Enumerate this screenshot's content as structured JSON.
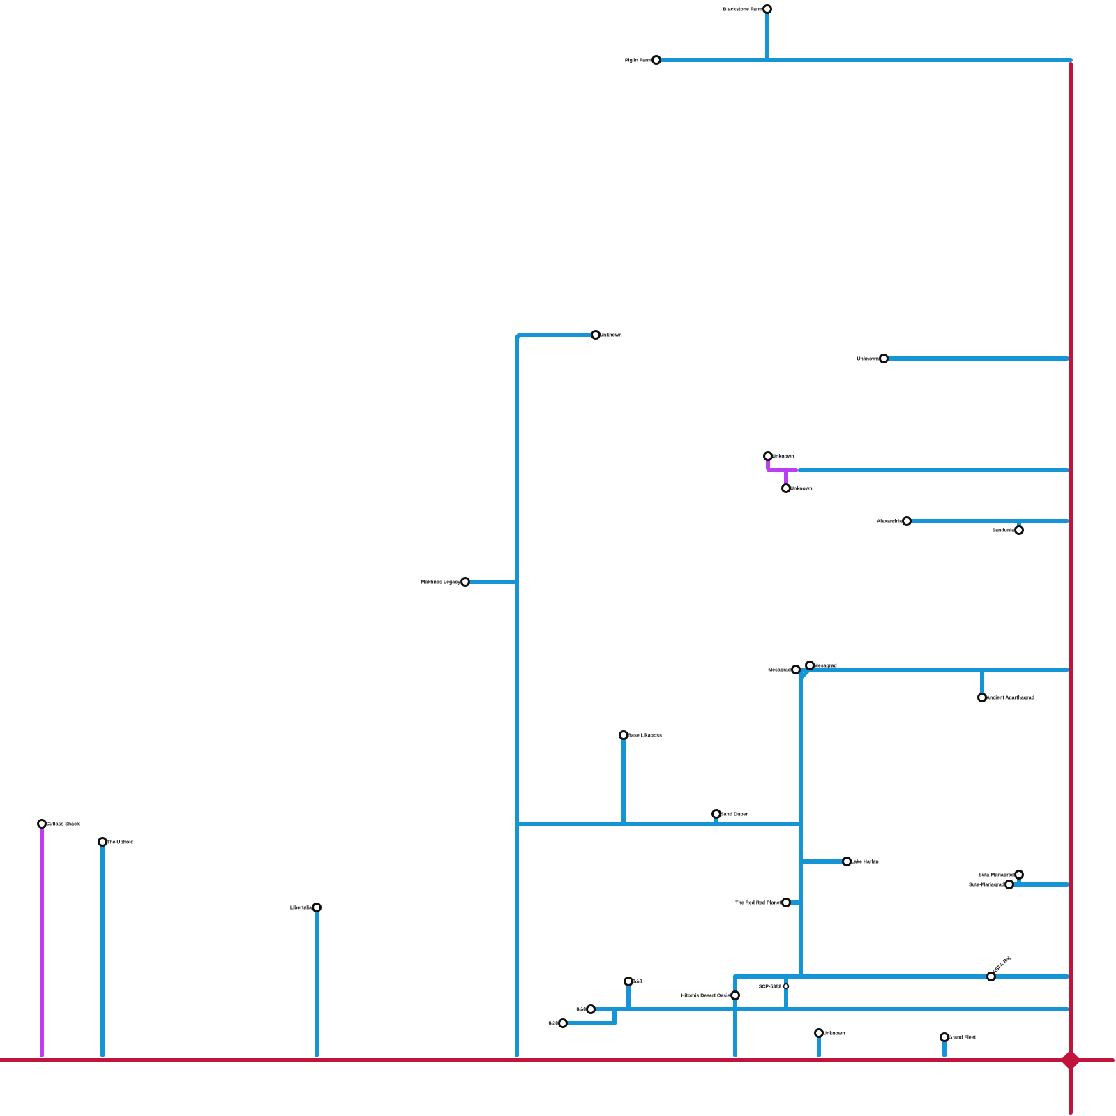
{
  "colors": {
    "axis": "#c0143c",
    "branch": "#1594d6",
    "purple": "#bb3ef0",
    "station_ring": "#111111"
  },
  "stations": [
    {
      "id": "blackstone",
      "label": "Blackstone Farm"
    },
    {
      "id": "piglin",
      "label": "Piglin Farm"
    },
    {
      "id": "unk-top",
      "label": "Unknown"
    },
    {
      "id": "unk-right",
      "label": "Unknown"
    },
    {
      "id": "unk-p1",
      "label": "Unknown"
    },
    {
      "id": "unk-p2",
      "label": "Unknown"
    },
    {
      "id": "alexandria",
      "label": "Alexandria"
    },
    {
      "id": "sandunia",
      "label": "Sandunia"
    },
    {
      "id": "makhnos",
      "label": "Makhnos Legacy"
    },
    {
      "id": "mesagrad1",
      "label": "Mesagrad"
    },
    {
      "id": "mesagrad2",
      "label": "Mesagrad"
    },
    {
      "id": "agarthagrad",
      "label": "Ancient Agarthagrad"
    },
    {
      "id": "likaboss",
      "label": "Base Likaboss"
    },
    {
      "id": "sandduper",
      "label": "Sand Duper"
    },
    {
      "id": "cutlass",
      "label": "Cutlass Shack"
    },
    {
      "id": "uphold",
      "label": "The Uphold"
    },
    {
      "id": "libertalia",
      "label": "Libertalia"
    },
    {
      "id": "harlan",
      "label": "Lake Harlan"
    },
    {
      "id": "suta1",
      "label": "Suta-Mariagrad"
    },
    {
      "id": "suta2",
      "label": "Suta-Mariagrad"
    },
    {
      "id": "redplanet",
      "label": "The Red Red Planet"
    },
    {
      "id": "rsfr",
      "label": "RSFR Raj"
    },
    {
      "id": "scp",
      "label": "SCP-5382"
    },
    {
      "id": "hitomis",
      "label": "Hitomis Desert Oasis"
    },
    {
      "id": "dd1",
      "label": "θώθ"
    },
    {
      "id": "dd2",
      "label": "θώθ"
    },
    {
      "id": "dd3",
      "label": "θώθ"
    },
    {
      "id": "unk-bottom",
      "label": "Unknown"
    },
    {
      "id": "grandfleet",
      "label": "Grand Fleet"
    }
  ]
}
